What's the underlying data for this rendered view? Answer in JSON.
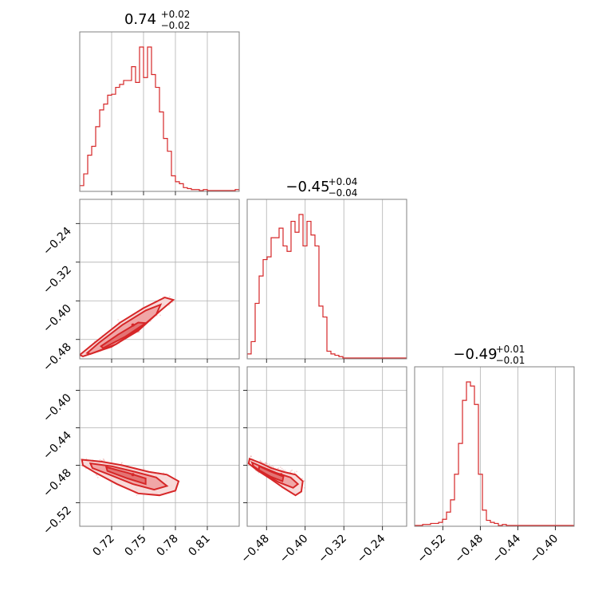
{
  "chart_data": {
    "type": "corner",
    "color": "#d62728",
    "parameters": [
      {
        "title": {
          "median": "0.74",
          "plus": "+0.02",
          "minus": "−0.02"
        },
        "range": [
          0.69,
          0.84
        ],
        "ticks": [
          {
            "value": 0.72,
            "label": "0.72"
          },
          {
            "value": 0.75,
            "label": "0.75"
          },
          {
            "value": 0.78,
            "label": "0.78"
          },
          {
            "value": 0.81,
            "label": "0.81"
          }
        ],
        "hist": {
          "start": 0.69,
          "step": 0.00375,
          "counts": [
            5,
            17,
            36,
            45,
            65,
            82,
            88,
            97,
            98,
            105,
            108,
            112,
            112,
            126,
            110,
            146,
            115,
            146,
            118,
            105,
            80,
            53,
            40,
            15,
            9,
            7,
            3,
            2,
            1,
            1,
            0,
            1,
            0,
            0,
            0,
            0,
            0,
            0,
            0,
            1
          ]
        }
      },
      {
        "title": {
          "median": "−0.45",
          "plus": "+0.04",
          "minus": "−0.04"
        },
        "range": [
          -0.52,
          -0.19
        ],
        "ticks": [
          {
            "value": -0.48,
            "label": "−0.48"
          },
          {
            "value": -0.4,
            "label": "−0.40"
          },
          {
            "value": -0.32,
            "label": "−0.32"
          },
          {
            "value": -0.24,
            "label": "−0.24"
          }
        ],
        "hist": {
          "start": -0.52,
          "step": 0.00825,
          "counts": [
            3,
            12,
            40,
            60,
            72,
            74,
            88,
            88,
            95,
            82,
            78,
            100,
            92,
            105,
            82,
            100,
            90,
            82,
            38,
            30,
            5,
            3,
            2,
            1,
            0,
            0,
            0,
            0,
            0,
            0,
            0,
            0,
            0,
            0,
            0,
            0,
            0,
            0,
            0,
            0
          ]
        }
      },
      {
        "title": {
          "median": "−0.49",
          "plus": "+0.01",
          "minus": "−0.01"
        },
        "range": [
          -0.55,
          -0.38
        ],
        "ticks": [
          {
            "value": -0.52,
            "label": "−0.52"
          },
          {
            "value": -0.48,
            "label": "−0.48"
          },
          {
            "value": -0.44,
            "label": "−0.44"
          },
          {
            "value": -0.4,
            "label": "−0.40"
          }
        ],
        "hist": {
          "start": -0.55,
          "step": 0.00425,
          "counts": [
            0,
            0,
            1,
            1,
            2,
            2,
            3,
            6,
            13,
            25,
            50,
            80,
            122,
            140,
            136,
            118,
            50,
            15,
            5,
            3,
            2,
            0,
            1,
            0,
            0,
            0,
            0,
            0,
            0,
            0,
            0,
            0,
            0,
            0,
            0,
            0,
            0,
            0,
            0,
            0
          ]
        }
      }
    ],
    "pairs": [
      {
        "x": 0,
        "y": 1,
        "median": [
          0.74,
          -0.45
        ],
        "contours": [
          [
            [
              0.693,
              -0.515
            ],
            [
              0.72,
              -0.495
            ],
            [
              0.745,
              -0.462
            ],
            [
              0.765,
              -0.422
            ],
            [
              0.778,
              -0.398
            ],
            [
              0.77,
              -0.393
            ],
            [
              0.75,
              -0.415
            ],
            [
              0.728,
              -0.445
            ],
            [
              0.705,
              -0.485
            ],
            [
              0.69,
              -0.512
            ]
          ],
          [
            [
              0.7,
              -0.51
            ],
            [
              0.724,
              -0.49
            ],
            [
              0.746,
              -0.458
            ],
            [
              0.762,
              -0.428
            ],
            [
              0.766,
              -0.408
            ],
            [
              0.752,
              -0.42
            ],
            [
              0.73,
              -0.45
            ],
            [
              0.708,
              -0.487
            ],
            [
              0.697,
              -0.508
            ]
          ],
          [
            [
              0.712,
              -0.498
            ],
            [
              0.733,
              -0.474
            ],
            [
              0.752,
              -0.446
            ],
            [
              0.745,
              -0.445
            ],
            [
              0.726,
              -0.47
            ],
            [
              0.71,
              -0.494
            ]
          ]
        ]
      },
      {
        "x": 0,
        "y": 2,
        "median": [
          0.74,
          -0.49
        ],
        "contours": [
          [
            [
              0.692,
              -0.474
            ],
            [
              0.71,
              -0.476
            ],
            [
              0.73,
              -0.48
            ],
            [
              0.755,
              -0.487
            ],
            [
              0.772,
              -0.49
            ],
            [
              0.783,
              -0.497
            ],
            [
              0.78,
              -0.507
            ],
            [
              0.765,
              -0.512
            ],
            [
              0.745,
              -0.51
            ],
            [
              0.725,
              -0.5
            ],
            [
              0.705,
              -0.488
            ],
            [
              0.693,
              -0.48
            ]
          ],
          [
            [
              0.7,
              -0.478
            ],
            [
              0.72,
              -0.481
            ],
            [
              0.742,
              -0.487
            ],
            [
              0.762,
              -0.493
            ],
            [
              0.772,
              -0.502
            ],
            [
              0.76,
              -0.506
            ],
            [
              0.74,
              -0.5
            ],
            [
              0.718,
              -0.49
            ],
            [
              0.702,
              -0.483
            ]
          ],
          [
            [
              0.715,
              -0.482
            ],
            [
              0.735,
              -0.488
            ],
            [
              0.752,
              -0.494
            ],
            [
              0.752,
              -0.5
            ],
            [
              0.735,
              -0.494
            ],
            [
              0.716,
              -0.486
            ]
          ]
        ]
      },
      {
        "x": 1,
        "y": 2,
        "median": [
          -0.45,
          -0.49
        ],
        "contours": [
          [
            [
              -0.515,
              -0.473
            ],
            [
              -0.495,
              -0.477
            ],
            [
              -0.47,
              -0.483
            ],
            [
              -0.445,
              -0.487
            ],
            [
              -0.42,
              -0.49
            ],
            [
              -0.405,
              -0.497
            ],
            [
              -0.408,
              -0.508
            ],
            [
              -0.42,
              -0.512
            ],
            [
              -0.445,
              -0.504
            ],
            [
              -0.47,
              -0.495
            ],
            [
              -0.5,
              -0.485
            ],
            [
              -0.517,
              -0.478
            ]
          ],
          [
            [
              -0.51,
              -0.477
            ],
            [
              -0.488,
              -0.482
            ],
            [
              -0.46,
              -0.488
            ],
            [
              -0.43,
              -0.493
            ],
            [
              -0.415,
              -0.5
            ],
            [
              -0.425,
              -0.504
            ],
            [
              -0.455,
              -0.498
            ],
            [
              -0.485,
              -0.489
            ],
            [
              -0.507,
              -0.481
            ]
          ],
          [
            [
              -0.495,
              -0.481
            ],
            [
              -0.47,
              -0.487
            ],
            [
              -0.445,
              -0.492
            ],
            [
              -0.447,
              -0.497
            ],
            [
              -0.472,
              -0.492
            ],
            [
              -0.496,
              -0.485
            ]
          ]
        ]
      }
    ],
    "y_ranges": {
      "1": [
        -0.52,
        -0.19
      ],
      "2": [
        -0.545,
        -0.375
      ]
    },
    "y_ticks": {
      "1": [
        {
          "value": -0.48,
          "label": "−0.48"
        },
        {
          "value": -0.4,
          "label": "−0.40"
        },
        {
          "value": -0.32,
          "label": "−0.32"
        },
        {
          "value": -0.24,
          "label": "−0.24"
        }
      ],
      "2": [
        {
          "value": -0.52,
          "label": "−0.52"
        },
        {
          "value": -0.48,
          "label": "−0.48"
        },
        {
          "value": -0.44,
          "label": "−0.44"
        },
        {
          "value": -0.4,
          "label": "−0.40"
        }
      ]
    }
  }
}
